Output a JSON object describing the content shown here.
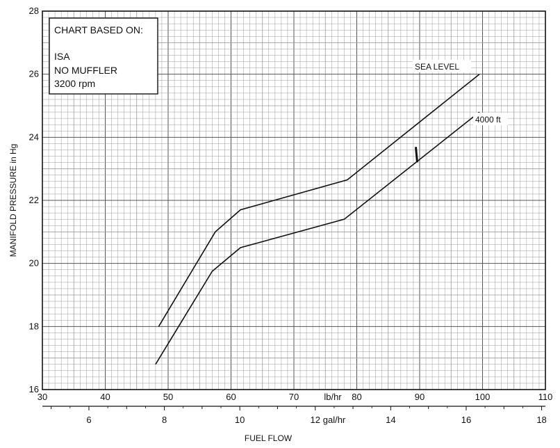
{
  "chart_data": {
    "type": "line",
    "title": "",
    "ylabel": "MANIFOLD PRESSURE in Hg",
    "xlabel": "FUEL FLOW",
    "ylim": [
      16,
      28
    ],
    "xlim_lbhr": [
      30,
      110
    ],
    "grid": true,
    "y_ticks": [
      16,
      18,
      20,
      22,
      24,
      26,
      28
    ],
    "x_ticks_lbhr": [
      30,
      40,
      50,
      60,
      70,
      80,
      90,
      100,
      110
    ],
    "x_unit_lbhr": "lb/hr",
    "x_ticks_galhr": [
      6,
      8,
      10,
      12,
      14,
      16,
      18
    ],
    "x_unit_galhr": "gal/hr",
    "galhr_axis_offset_lbhr": 1.4,
    "lbhr_per_galhr": 6,
    "info_box": {
      "header": "CHART BASED ON:",
      "lines": [
        "ISA",
        "NO MUFFLER",
        "3200 rpm"
      ]
    },
    "series": [
      {
        "name": "SEA LEVEL",
        "points": [
          [
            48.5,
            18.0
          ],
          [
            57.5,
            21.0
          ],
          [
            61.5,
            21.7
          ],
          [
            78.5,
            22.65
          ],
          [
            99.5,
            26.0
          ]
        ]
      },
      {
        "name": "4000 ft",
        "points": [
          [
            48.0,
            16.8
          ],
          [
            57.0,
            19.75
          ],
          [
            61.5,
            20.5
          ],
          [
            78.0,
            21.4
          ],
          [
            99.5,
            24.8
          ]
        ]
      }
    ],
    "marker": {
      "x": 89.5,
      "y": 23.45
    }
  }
}
